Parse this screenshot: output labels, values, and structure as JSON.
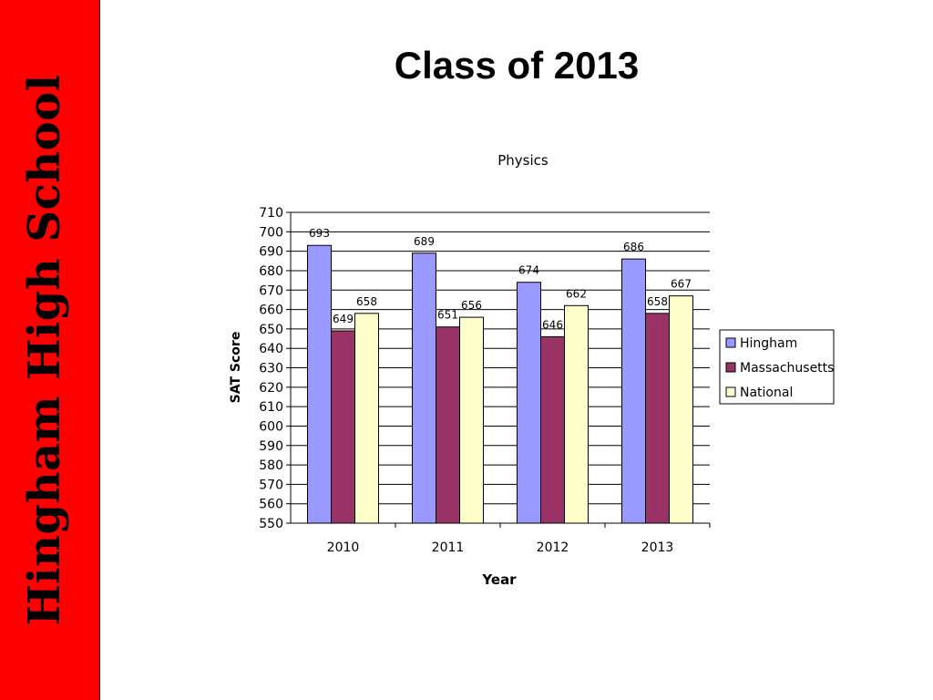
{
  "sidebar": {
    "label": "Hingham High School",
    "color": "#ff0000"
  },
  "slide": {
    "title": "Class of 2013"
  },
  "chart_data": {
    "type": "bar",
    "title": "Physics",
    "xlabel": "Year",
    "ylabel": "SAT Score",
    "categories": [
      "2010",
      "2011",
      "2012",
      "2013"
    ],
    "ylim": [
      550,
      710
    ],
    "ytick_step": 10,
    "grid": true,
    "legend_position": "right",
    "series": [
      {
        "name": "Hingham",
        "color": "#9999ff",
        "values": [
          693,
          689,
          674,
          686
        ],
        "labels": [
          "693",
          "689",
          "674",
          "686"
        ]
      },
      {
        "name": "Massachusetts",
        "color": "#993366",
        "values": [
          649,
          651,
          646,
          658
        ],
        "labels": [
          "649",
          "651",
          "646",
          "658"
        ]
      },
      {
        "name": "National",
        "color": "#ffffcc",
        "values": [
          658,
          656,
          662,
          667
        ],
        "labels": [
          "658",
          "656",
          "662",
          "667"
        ]
      }
    ]
  }
}
